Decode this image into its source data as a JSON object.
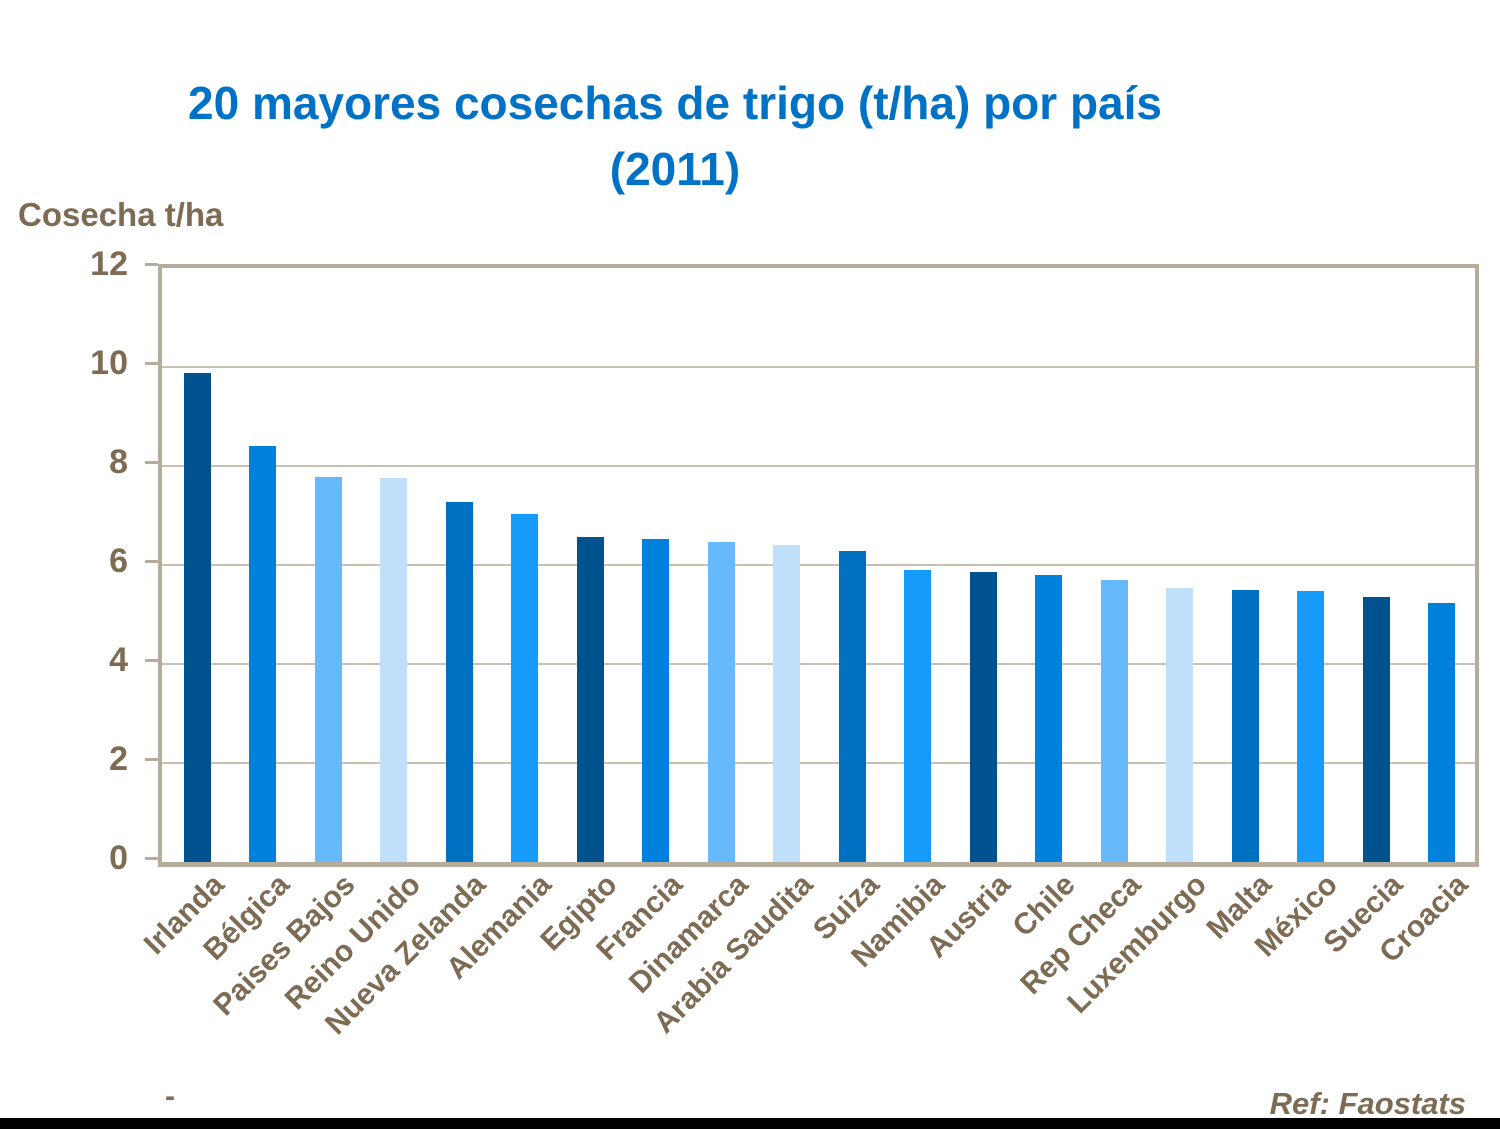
{
  "title": {
    "line1": "20 mayores cosechas de trigo (t/ha) por país",
    "line2": "(2011)"
  },
  "y_axis": {
    "title": "Cosecha t/ha",
    "ticks": [
      0,
      2,
      4,
      6,
      8,
      10,
      12
    ],
    "max": 12
  },
  "footer": {
    "ref": "Ref: Faostats",
    "dash": "-"
  },
  "ui_colors": {
    "title_blue": "#0072C6",
    "axis_text_brown": "#7D6B54",
    "plot_border_tan": "#B7AB9B",
    "gridline_tan": "#C9C0B1",
    "bottom_bar_black": "#000000"
  },
  "chart_data": {
    "type": "bar",
    "title": "20 mayores cosechas de trigo (t/ha) por país (2011)",
    "xlabel": "",
    "ylabel": "Cosecha t/ha",
    "ylim": [
      0,
      12
    ],
    "grid": true,
    "legend": false,
    "categories": [
      "Irlanda",
      "Bélgica",
      "Paises Bajos",
      "Reino Unido",
      "Nueva Zelanda",
      "Alemania",
      "Egipto",
      "Francia",
      "Dinamarca",
      "Arabia Saudita",
      "Suiza",
      "Namibia",
      "Austria",
      "Chile",
      "Rep Checa",
      "Luxemburgo",
      "Malta",
      "México",
      "Suecia",
      "Croacia"
    ],
    "values": [
      9.87,
      8.4,
      7.77,
      7.75,
      7.28,
      7.03,
      6.56,
      6.53,
      6.47,
      6.41,
      6.28,
      5.9,
      5.86,
      5.8,
      5.7,
      5.53,
      5.5,
      5.48,
      5.36,
      5.23
    ],
    "bar_color_cycle": [
      "#00538F",
      "#0081DC",
      "#66BAFB",
      "#C0DFFB",
      "#0070C0",
      "#169BFB"
    ]
  }
}
